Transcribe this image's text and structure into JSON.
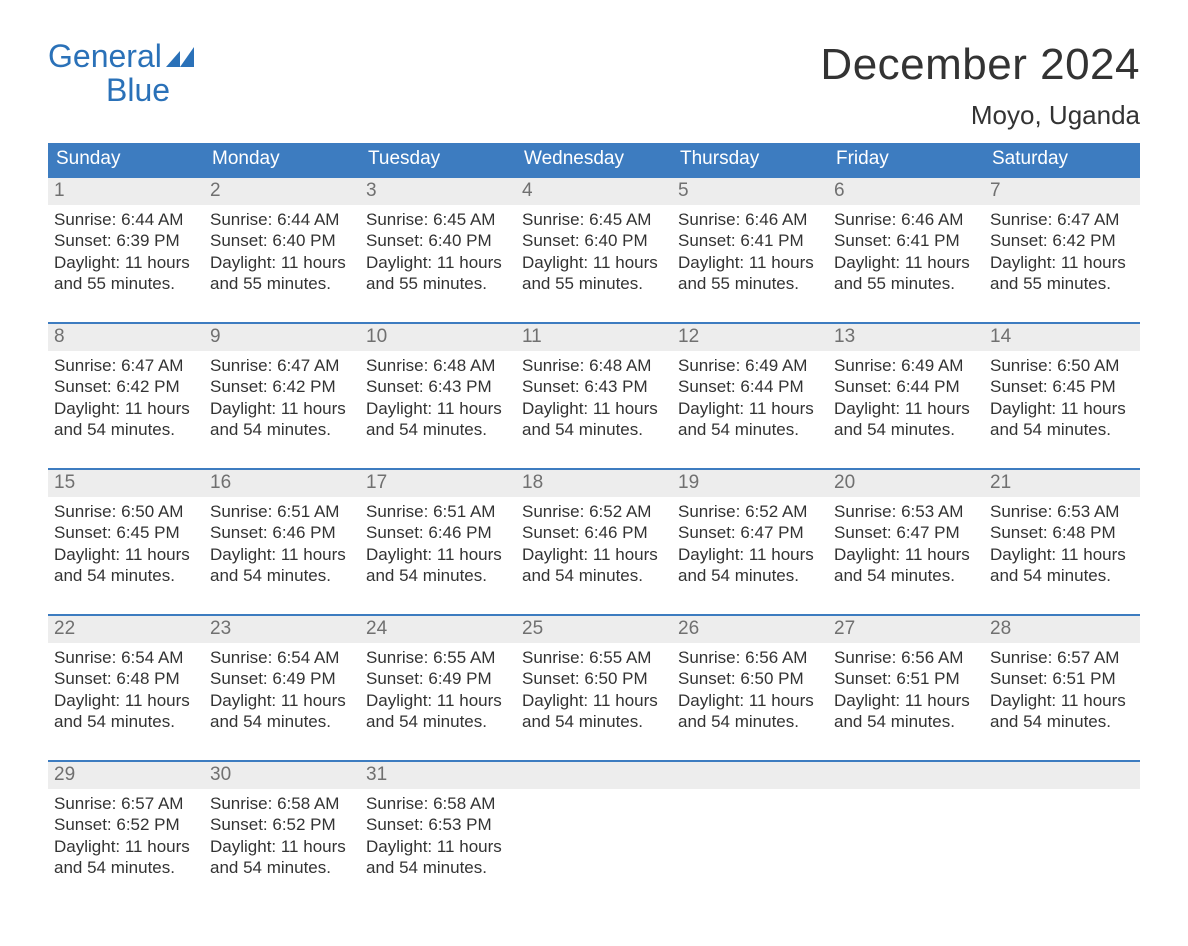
{
  "logo": {
    "text_top": "General",
    "text_bottom": "Blue",
    "brand_color": "#2a71b8"
  },
  "title": "December 2024",
  "location": "Moyo, Uganda",
  "colors": {
    "header_bg": "#3d7cc0",
    "header_text": "#ffffff",
    "daynum_bg": "#ededed",
    "daynum_text": "#707070",
    "body_text": "#333333",
    "week_border": "#3d7cc0",
    "page_bg": "#ffffff"
  },
  "day_names": [
    "Sunday",
    "Monday",
    "Tuesday",
    "Wednesday",
    "Thursday",
    "Friday",
    "Saturday"
  ],
  "weeks": [
    [
      {
        "day": "1",
        "sunrise": "Sunrise: 6:44 AM",
        "sunset": "Sunset: 6:39 PM",
        "dl1": "Daylight: 11 hours",
        "dl2": "and 55 minutes."
      },
      {
        "day": "2",
        "sunrise": "Sunrise: 6:44 AM",
        "sunset": "Sunset: 6:40 PM",
        "dl1": "Daylight: 11 hours",
        "dl2": "and 55 minutes."
      },
      {
        "day": "3",
        "sunrise": "Sunrise: 6:45 AM",
        "sunset": "Sunset: 6:40 PM",
        "dl1": "Daylight: 11 hours",
        "dl2": "and 55 minutes."
      },
      {
        "day": "4",
        "sunrise": "Sunrise: 6:45 AM",
        "sunset": "Sunset: 6:40 PM",
        "dl1": "Daylight: 11 hours",
        "dl2": "and 55 minutes."
      },
      {
        "day": "5",
        "sunrise": "Sunrise: 6:46 AM",
        "sunset": "Sunset: 6:41 PM",
        "dl1": "Daylight: 11 hours",
        "dl2": "and 55 minutes."
      },
      {
        "day": "6",
        "sunrise": "Sunrise: 6:46 AM",
        "sunset": "Sunset: 6:41 PM",
        "dl1": "Daylight: 11 hours",
        "dl2": "and 55 minutes."
      },
      {
        "day": "7",
        "sunrise": "Sunrise: 6:47 AM",
        "sunset": "Sunset: 6:42 PM",
        "dl1": "Daylight: 11 hours",
        "dl2": "and 55 minutes."
      }
    ],
    [
      {
        "day": "8",
        "sunrise": "Sunrise: 6:47 AM",
        "sunset": "Sunset: 6:42 PM",
        "dl1": "Daylight: 11 hours",
        "dl2": "and 54 minutes."
      },
      {
        "day": "9",
        "sunrise": "Sunrise: 6:47 AM",
        "sunset": "Sunset: 6:42 PM",
        "dl1": "Daylight: 11 hours",
        "dl2": "and 54 minutes."
      },
      {
        "day": "10",
        "sunrise": "Sunrise: 6:48 AM",
        "sunset": "Sunset: 6:43 PM",
        "dl1": "Daylight: 11 hours",
        "dl2": "and 54 minutes."
      },
      {
        "day": "11",
        "sunrise": "Sunrise: 6:48 AM",
        "sunset": "Sunset: 6:43 PM",
        "dl1": "Daylight: 11 hours",
        "dl2": "and 54 minutes."
      },
      {
        "day": "12",
        "sunrise": "Sunrise: 6:49 AM",
        "sunset": "Sunset: 6:44 PM",
        "dl1": "Daylight: 11 hours",
        "dl2": "and 54 minutes."
      },
      {
        "day": "13",
        "sunrise": "Sunrise: 6:49 AM",
        "sunset": "Sunset: 6:44 PM",
        "dl1": "Daylight: 11 hours",
        "dl2": "and 54 minutes."
      },
      {
        "day": "14",
        "sunrise": "Sunrise: 6:50 AM",
        "sunset": "Sunset: 6:45 PM",
        "dl1": "Daylight: 11 hours",
        "dl2": "and 54 minutes."
      }
    ],
    [
      {
        "day": "15",
        "sunrise": "Sunrise: 6:50 AM",
        "sunset": "Sunset: 6:45 PM",
        "dl1": "Daylight: 11 hours",
        "dl2": "and 54 minutes."
      },
      {
        "day": "16",
        "sunrise": "Sunrise: 6:51 AM",
        "sunset": "Sunset: 6:46 PM",
        "dl1": "Daylight: 11 hours",
        "dl2": "and 54 minutes."
      },
      {
        "day": "17",
        "sunrise": "Sunrise: 6:51 AM",
        "sunset": "Sunset: 6:46 PM",
        "dl1": "Daylight: 11 hours",
        "dl2": "and 54 minutes."
      },
      {
        "day": "18",
        "sunrise": "Sunrise: 6:52 AM",
        "sunset": "Sunset: 6:46 PM",
        "dl1": "Daylight: 11 hours",
        "dl2": "and 54 minutes."
      },
      {
        "day": "19",
        "sunrise": "Sunrise: 6:52 AM",
        "sunset": "Sunset: 6:47 PM",
        "dl1": "Daylight: 11 hours",
        "dl2": "and 54 minutes."
      },
      {
        "day": "20",
        "sunrise": "Sunrise: 6:53 AM",
        "sunset": "Sunset: 6:47 PM",
        "dl1": "Daylight: 11 hours",
        "dl2": "and 54 minutes."
      },
      {
        "day": "21",
        "sunrise": "Sunrise: 6:53 AM",
        "sunset": "Sunset: 6:48 PM",
        "dl1": "Daylight: 11 hours",
        "dl2": "and 54 minutes."
      }
    ],
    [
      {
        "day": "22",
        "sunrise": "Sunrise: 6:54 AM",
        "sunset": "Sunset: 6:48 PM",
        "dl1": "Daylight: 11 hours",
        "dl2": "and 54 minutes."
      },
      {
        "day": "23",
        "sunrise": "Sunrise: 6:54 AM",
        "sunset": "Sunset: 6:49 PM",
        "dl1": "Daylight: 11 hours",
        "dl2": "and 54 minutes."
      },
      {
        "day": "24",
        "sunrise": "Sunrise: 6:55 AM",
        "sunset": "Sunset: 6:49 PM",
        "dl1": "Daylight: 11 hours",
        "dl2": "and 54 minutes."
      },
      {
        "day": "25",
        "sunrise": "Sunrise: 6:55 AM",
        "sunset": "Sunset: 6:50 PM",
        "dl1": "Daylight: 11 hours",
        "dl2": "and 54 minutes."
      },
      {
        "day": "26",
        "sunrise": "Sunrise: 6:56 AM",
        "sunset": "Sunset: 6:50 PM",
        "dl1": "Daylight: 11 hours",
        "dl2": "and 54 minutes."
      },
      {
        "day": "27",
        "sunrise": "Sunrise: 6:56 AM",
        "sunset": "Sunset: 6:51 PM",
        "dl1": "Daylight: 11 hours",
        "dl2": "and 54 minutes."
      },
      {
        "day": "28",
        "sunrise": "Sunrise: 6:57 AM",
        "sunset": "Sunset: 6:51 PM",
        "dl1": "Daylight: 11 hours",
        "dl2": "and 54 minutes."
      }
    ],
    [
      {
        "day": "29",
        "sunrise": "Sunrise: 6:57 AM",
        "sunset": "Sunset: 6:52 PM",
        "dl1": "Daylight: 11 hours",
        "dl2": "and 54 minutes."
      },
      {
        "day": "30",
        "sunrise": "Sunrise: 6:58 AM",
        "sunset": "Sunset: 6:52 PM",
        "dl1": "Daylight: 11 hours",
        "dl2": "and 54 minutes."
      },
      {
        "day": "31",
        "sunrise": "Sunrise: 6:58 AM",
        "sunset": "Sunset: 6:53 PM",
        "dl1": "Daylight: 11 hours",
        "dl2": "and 54 minutes."
      },
      {
        "empty": true
      },
      {
        "empty": true
      },
      {
        "empty": true
      },
      {
        "empty": true
      }
    ]
  ]
}
